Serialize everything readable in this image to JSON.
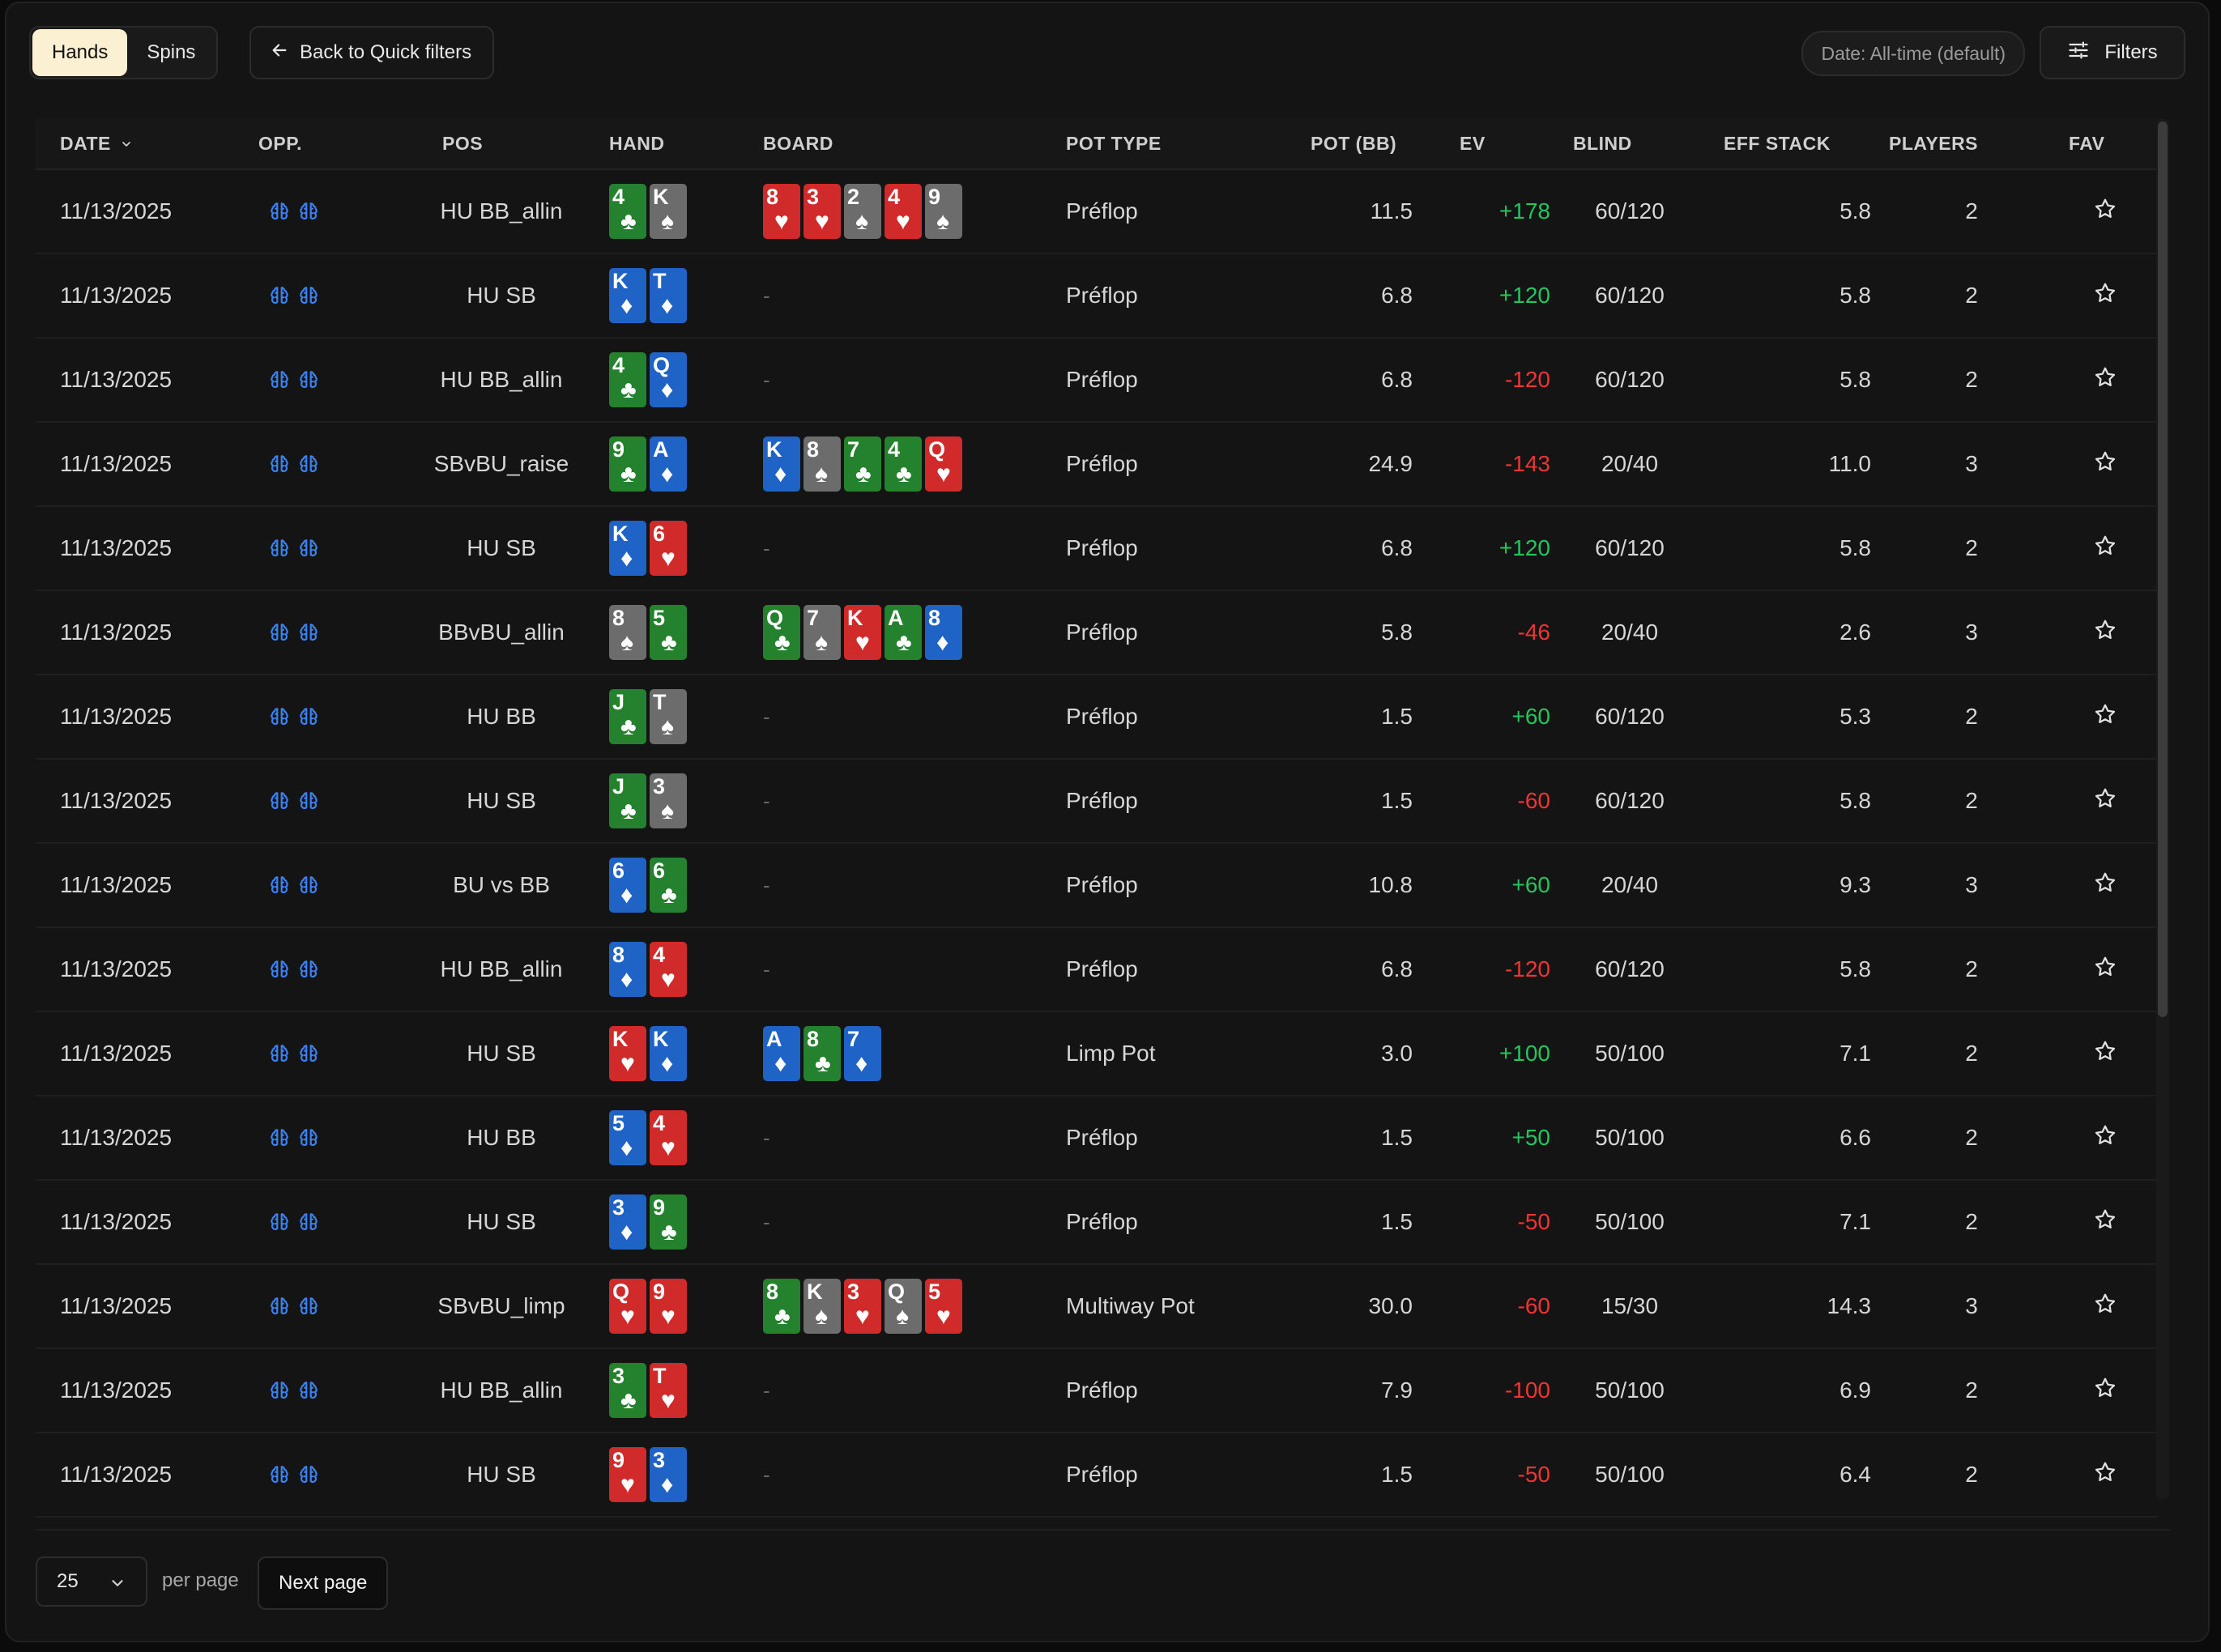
{
  "tabs": [
    {
      "label": "Hands",
      "active": true
    },
    {
      "label": "Spins",
      "active": false
    }
  ],
  "back_button": {
    "label": "Back to Quick filters",
    "icon": "arrow-left-icon"
  },
  "date_filter": {
    "label": "Date: All-time (default)"
  },
  "filters_button": {
    "label": "Filters",
    "icon": "sliders-icon"
  },
  "columns": [
    "DATE",
    "OPP.",
    "POS",
    "HAND",
    "BOARD",
    "POT TYPE",
    "POT (BB)",
    "EV",
    "BLIND",
    "EFF STACK",
    "PLAYERS",
    "FAV"
  ],
  "sort": {
    "column": "DATE",
    "direction": "desc",
    "icon": "chevron-down-icon"
  },
  "rows": [
    {
      "date": "11/13/2025",
      "pos": "HU BB_allin",
      "hand": [
        "4c",
        "Ks"
      ],
      "board": [
        "8h",
        "3h",
        "2s",
        "4h",
        "9s"
      ],
      "pot_type": "Préflop",
      "pot": "11.5",
      "ev": "+178",
      "blind": "60/120",
      "eff": "5.8",
      "players": "2"
    },
    {
      "date": "11/13/2025",
      "pos": "HU SB",
      "hand": [
        "Kd",
        "Td"
      ],
      "board": [],
      "pot_type": "Préflop",
      "pot": "6.8",
      "ev": "+120",
      "blind": "60/120",
      "eff": "5.8",
      "players": "2"
    },
    {
      "date": "11/13/2025",
      "pos": "HU BB_allin",
      "hand": [
        "4c",
        "Qd"
      ],
      "board": [],
      "pot_type": "Préflop",
      "pot": "6.8",
      "ev": "-120",
      "blind": "60/120",
      "eff": "5.8",
      "players": "2"
    },
    {
      "date": "11/13/2025",
      "pos": "SBvBU_raise",
      "hand": [
        "9c",
        "Ad"
      ],
      "board": [
        "Kd",
        "8s",
        "7c",
        "4c",
        "Qh"
      ],
      "pot_type": "Préflop",
      "pot": "24.9",
      "ev": "-143",
      "blind": "20/40",
      "eff": "11.0",
      "players": "3"
    },
    {
      "date": "11/13/2025",
      "pos": "HU SB",
      "hand": [
        "Kd",
        "6h"
      ],
      "board": [],
      "pot_type": "Préflop",
      "pot": "6.8",
      "ev": "+120",
      "blind": "60/120",
      "eff": "5.8",
      "players": "2"
    },
    {
      "date": "11/13/2025",
      "pos": "BBvBU_allin",
      "hand": [
        "8s",
        "5c"
      ],
      "board": [
        "Qc",
        "7s",
        "Kh",
        "Ac",
        "8d"
      ],
      "pot_type": "Préflop",
      "pot": "5.8",
      "ev": "-46",
      "blind": "20/40",
      "eff": "2.6",
      "players": "3"
    },
    {
      "date": "11/13/2025",
      "pos": "HU BB",
      "hand": [
        "Jc",
        "Ts"
      ],
      "board": [],
      "pot_type": "Préflop",
      "pot": "1.5",
      "ev": "+60",
      "blind": "60/120",
      "eff": "5.3",
      "players": "2"
    },
    {
      "date": "11/13/2025",
      "pos": "HU SB",
      "hand": [
        "Jc",
        "3s"
      ],
      "board": [],
      "pot_type": "Préflop",
      "pot": "1.5",
      "ev": "-60",
      "blind": "60/120",
      "eff": "5.8",
      "players": "2"
    },
    {
      "date": "11/13/2025",
      "pos": "BU vs BB",
      "hand": [
        "6d",
        "6c"
      ],
      "board": [],
      "pot_type": "Préflop",
      "pot": "10.8",
      "ev": "+60",
      "blind": "20/40",
      "eff": "9.3",
      "players": "3"
    },
    {
      "date": "11/13/2025",
      "pos": "HU BB_allin",
      "hand": [
        "8d",
        "4h"
      ],
      "board": [],
      "pot_type": "Préflop",
      "pot": "6.8",
      "ev": "-120",
      "blind": "60/120",
      "eff": "5.8",
      "players": "2"
    },
    {
      "date": "11/13/2025",
      "pos": "HU SB",
      "hand": [
        "Kh",
        "Kd"
      ],
      "board": [
        "Ad",
        "8c",
        "7d"
      ],
      "pot_type": "Limp Pot",
      "pot": "3.0",
      "ev": "+100",
      "blind": "50/100",
      "eff": "7.1",
      "players": "2"
    },
    {
      "date": "11/13/2025",
      "pos": "HU BB",
      "hand": [
        "5d",
        "4h"
      ],
      "board": [],
      "pot_type": "Préflop",
      "pot": "1.5",
      "ev": "+50",
      "blind": "50/100",
      "eff": "6.6",
      "players": "2"
    },
    {
      "date": "11/13/2025",
      "pos": "HU SB",
      "hand": [
        "3d",
        "9c"
      ],
      "board": [],
      "pot_type": "Préflop",
      "pot": "1.5",
      "ev": "-50",
      "blind": "50/100",
      "eff": "7.1",
      "players": "2"
    },
    {
      "date": "11/13/2025",
      "pos": "SBvBU_limp",
      "hand": [
        "Qh",
        "9h"
      ],
      "board": [
        "8c",
        "Ks",
        "3h",
        "Qs",
        "5h"
      ],
      "pot_type": "Multiway Pot",
      "pot": "30.0",
      "ev": "-60",
      "blind": "15/30",
      "eff": "14.3",
      "players": "3"
    },
    {
      "date": "11/13/2025",
      "pos": "HU BB_allin",
      "hand": [
        "3c",
        "Th"
      ],
      "board": [],
      "pot_type": "Préflop",
      "pot": "7.9",
      "ev": "-100",
      "blind": "50/100",
      "eff": "6.9",
      "players": "2"
    },
    {
      "date": "11/13/2025",
      "pos": "HU SB",
      "hand": [
        "9h",
        "3d"
      ],
      "board": [],
      "pot_type": "Préflop",
      "pot": "1.5",
      "ev": "-50",
      "blind": "50/100",
      "eff": "6.4",
      "players": "2"
    }
  ],
  "empty_board": "-",
  "pagination": {
    "per_page": "25",
    "per_page_label": "per page",
    "next_label": "Next page"
  },
  "colors": {
    "accent_tab": "#fbf1d2",
    "ev_positive": "#22c55e",
    "ev_negative": "#ef3434",
    "clubs": "#24822f",
    "diamonds": "#1f63c7",
    "hearts": "#d12a2a",
    "spades": "#6c6c6c",
    "opp_icon": "#3b82f6"
  },
  "icons": {
    "opponent": "brain-icon",
    "favorite": "star-outline-icon",
    "select": "chevron-down-icon"
  }
}
